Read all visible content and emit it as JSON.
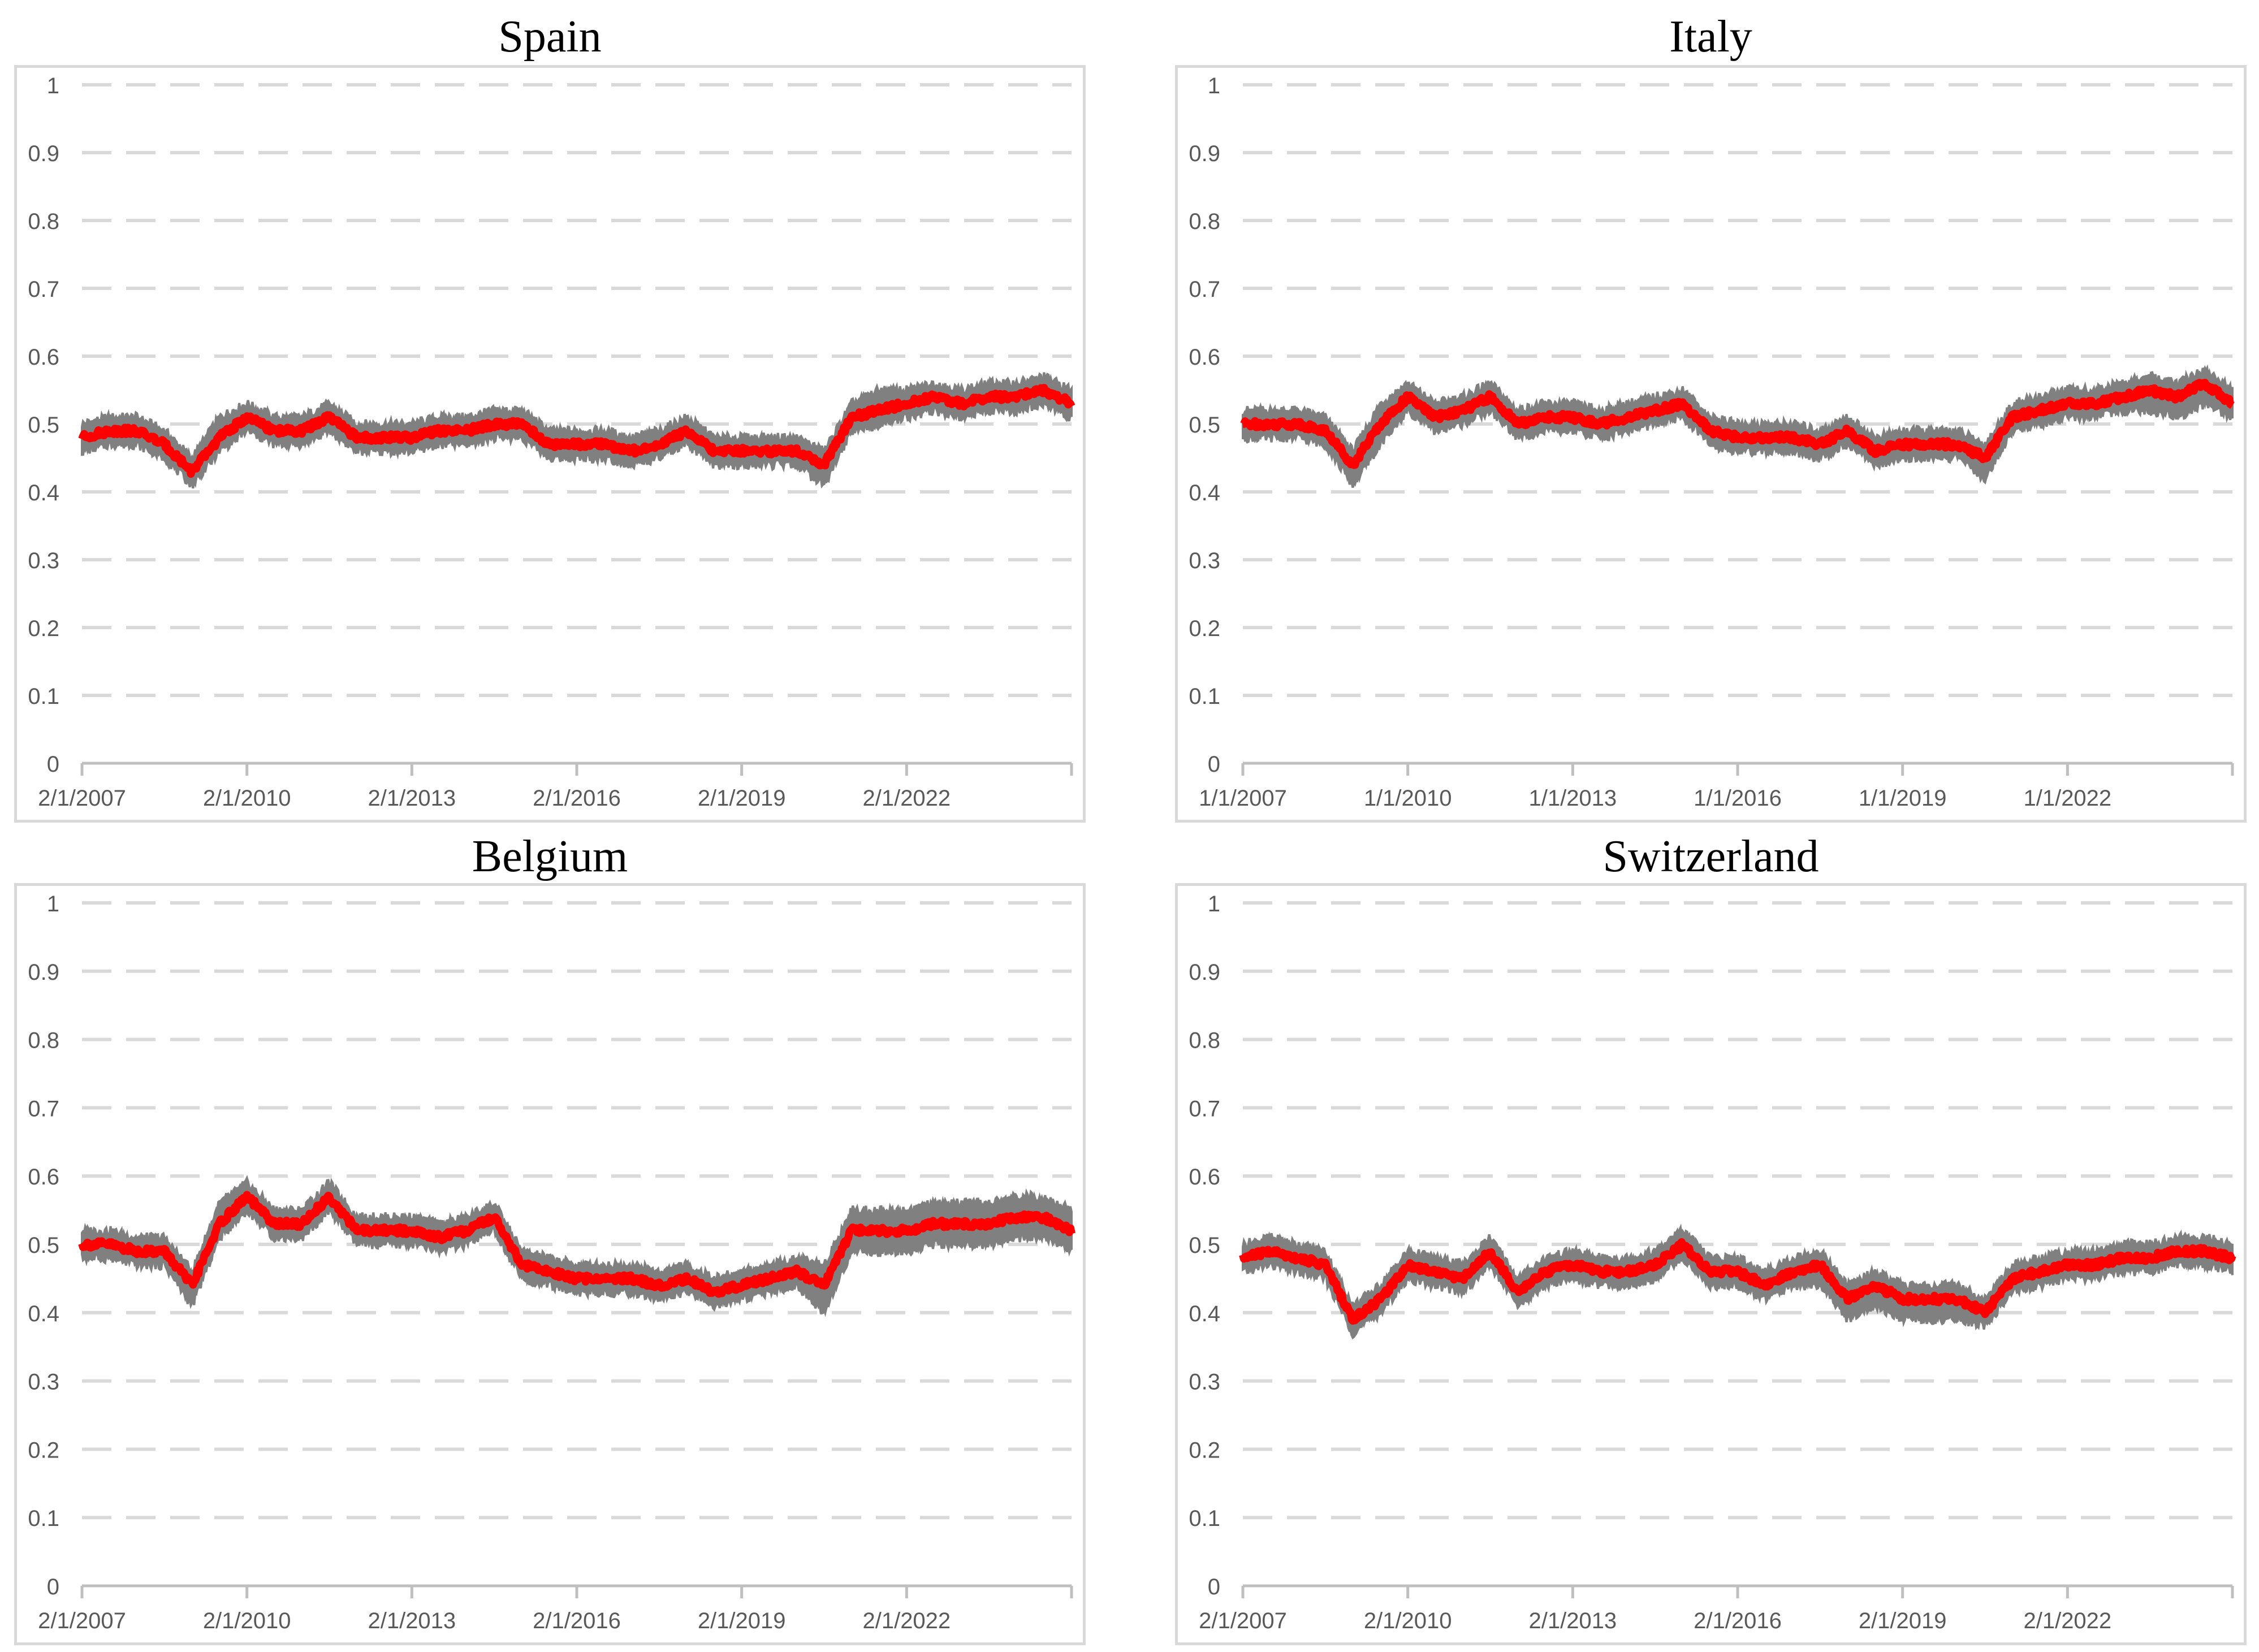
{
  "colors": {
    "band": "#808080",
    "center": "#ff0000",
    "grid": "#d9d9d9",
    "axis": "#bfbfbf",
    "tick_text": "#595959"
  },
  "chart_data": [
    {
      "type": "line",
      "title": "Spain",
      "ylim": [
        0,
        1
      ],
      "y_ticks": [
        "0",
        "0.1",
        "0.2",
        "0.3",
        "0.4",
        "0.5",
        "0.6",
        "0.7",
        "0.8",
        "0.9",
        "1"
      ],
      "x_tick_labels": [
        "2/1/2007",
        "2/1/2010",
        "2/1/2013",
        "2/1/2016",
        "2/1/2019",
        "2/1/2022"
      ],
      "xlim": [
        2007.0,
        2025.0
      ],
      "grid": "horizontal-dashed",
      "x": [
        2007.0,
        2007.5,
        2008.0,
        2008.5,
        2009.0,
        2009.5,
        2010.0,
        2010.5,
        2011.0,
        2011.5,
        2012.0,
        2012.5,
        2013.0,
        2013.5,
        2014.0,
        2014.5,
        2015.0,
        2015.5,
        2016.0,
        2016.5,
        2017.0,
        2017.5,
        2018.0,
        2018.5,
        2019.0,
        2019.5,
        2020.0,
        2020.5,
        2021.0,
        2021.5,
        2022.0,
        2022.5,
        2023.0,
        2023.5,
        2024.0,
        2024.5,
        2025.0
      ],
      "series": [
        {
          "role": "center",
          "values": [
            0.48,
            0.49,
            0.49,
            0.47,
            0.43,
            0.48,
            0.51,
            0.49,
            0.49,
            0.51,
            0.48,
            0.48,
            0.48,
            0.49,
            0.49,
            0.5,
            0.5,
            0.47,
            0.47,
            0.47,
            0.46,
            0.47,
            0.49,
            0.46,
            0.46,
            0.46,
            0.46,
            0.44,
            0.51,
            0.52,
            0.53,
            0.54,
            0.53,
            0.54,
            0.54,
            0.55,
            0.53
          ]
        },
        {
          "role": "band-upper",
          "values": [
            0.5,
            0.51,
            0.51,
            0.49,
            0.45,
            0.51,
            0.53,
            0.51,
            0.51,
            0.53,
            0.5,
            0.5,
            0.5,
            0.51,
            0.51,
            0.52,
            0.52,
            0.49,
            0.49,
            0.49,
            0.48,
            0.49,
            0.51,
            0.48,
            0.48,
            0.48,
            0.48,
            0.46,
            0.53,
            0.55,
            0.55,
            0.56,
            0.55,
            0.56,
            0.56,
            0.57,
            0.55
          ]
        },
        {
          "role": "band-lower",
          "values": [
            0.46,
            0.47,
            0.47,
            0.45,
            0.41,
            0.46,
            0.49,
            0.47,
            0.47,
            0.49,
            0.46,
            0.46,
            0.46,
            0.47,
            0.47,
            0.48,
            0.48,
            0.45,
            0.45,
            0.45,
            0.44,
            0.45,
            0.47,
            0.44,
            0.44,
            0.44,
            0.44,
            0.41,
            0.49,
            0.5,
            0.51,
            0.52,
            0.51,
            0.52,
            0.52,
            0.53,
            0.51
          ]
        }
      ]
    },
    {
      "type": "line",
      "title": "Italy",
      "ylim": [
        0,
        1
      ],
      "y_ticks": [
        "0",
        "0.1",
        "0.2",
        "0.3",
        "0.4",
        "0.5",
        "0.6",
        "0.7",
        "0.8",
        "0.9",
        "1"
      ],
      "x_tick_labels": [
        "1/1/2007",
        "1/1/2010",
        "1/1/2013",
        "1/1/2016",
        "1/1/2019",
        "1/1/2022"
      ],
      "xlim": [
        2007.0,
        2025.0
      ],
      "grid": "horizontal-dashed",
      "x": [
        2007.0,
        2007.5,
        2008.0,
        2008.5,
        2009.0,
        2009.5,
        2010.0,
        2010.5,
        2011.0,
        2011.5,
        2012.0,
        2012.5,
        2013.0,
        2013.5,
        2014.0,
        2014.5,
        2015.0,
        2015.5,
        2016.0,
        2016.5,
        2017.0,
        2017.5,
        2018.0,
        2018.5,
        2019.0,
        2019.5,
        2020.0,
        2020.5,
        2021.0,
        2021.5,
        2022.0,
        2022.5,
        2023.0,
        2023.5,
        2024.0,
        2024.5,
        2025.0
      ],
      "series": [
        {
          "role": "center",
          "values": [
            0.5,
            0.5,
            0.5,
            0.49,
            0.44,
            0.5,
            0.54,
            0.51,
            0.52,
            0.54,
            0.5,
            0.51,
            0.51,
            0.5,
            0.51,
            0.52,
            0.53,
            0.49,
            0.48,
            0.48,
            0.48,
            0.47,
            0.49,
            0.46,
            0.47,
            0.47,
            0.47,
            0.45,
            0.51,
            0.52,
            0.53,
            0.53,
            0.54,
            0.55,
            0.54,
            0.56,
            0.53
          ]
        },
        {
          "role": "band-upper",
          "values": [
            0.52,
            0.52,
            0.52,
            0.51,
            0.46,
            0.53,
            0.56,
            0.53,
            0.54,
            0.56,
            0.52,
            0.53,
            0.53,
            0.52,
            0.53,
            0.54,
            0.55,
            0.51,
            0.5,
            0.5,
            0.5,
            0.49,
            0.51,
            0.48,
            0.49,
            0.49,
            0.49,
            0.47,
            0.53,
            0.54,
            0.55,
            0.55,
            0.56,
            0.57,
            0.56,
            0.58,
            0.55
          ]
        },
        {
          "role": "band-lower",
          "values": [
            0.48,
            0.48,
            0.48,
            0.47,
            0.41,
            0.47,
            0.52,
            0.49,
            0.5,
            0.52,
            0.48,
            0.49,
            0.49,
            0.48,
            0.49,
            0.5,
            0.51,
            0.47,
            0.46,
            0.46,
            0.46,
            0.45,
            0.47,
            0.44,
            0.45,
            0.45,
            0.45,
            0.42,
            0.49,
            0.5,
            0.51,
            0.51,
            0.52,
            0.52,
            0.51,
            0.53,
            0.51
          ]
        }
      ]
    },
    {
      "type": "line",
      "title": "Belgium",
      "ylim": [
        0,
        1
      ],
      "y_ticks": [
        "0",
        "0.1",
        "0.2",
        "0.3",
        "0.4",
        "0.5",
        "0.6",
        "0.7",
        "0.8",
        "0.9",
        "1"
      ],
      "x_tick_labels": [
        "2/1/2007",
        "2/1/2010",
        "2/1/2013",
        "2/1/2016",
        "2/1/2019",
        "2/1/2022"
      ],
      "xlim": [
        2007.0,
        2025.0
      ],
      "grid": "horizontal-dashed",
      "x": [
        2007.0,
        2007.5,
        2008.0,
        2008.5,
        2009.0,
        2009.5,
        2010.0,
        2010.5,
        2011.0,
        2011.5,
        2012.0,
        2012.5,
        2013.0,
        2013.5,
        2014.0,
        2014.5,
        2015.0,
        2015.5,
        2016.0,
        2016.5,
        2017.0,
        2017.5,
        2018.0,
        2018.5,
        2019.0,
        2019.5,
        2020.0,
        2020.5,
        2021.0,
        2021.5,
        2022.0,
        2022.5,
        2023.0,
        2023.5,
        2024.0,
        2024.5,
        2025.0
      ],
      "series": [
        {
          "role": "center",
          "values": [
            0.5,
            0.5,
            0.49,
            0.49,
            0.44,
            0.53,
            0.57,
            0.53,
            0.53,
            0.57,
            0.52,
            0.52,
            0.52,
            0.51,
            0.52,
            0.54,
            0.47,
            0.46,
            0.45,
            0.45,
            0.45,
            0.44,
            0.45,
            0.43,
            0.44,
            0.45,
            0.46,
            0.44,
            0.52,
            0.52,
            0.52,
            0.53,
            0.53,
            0.53,
            0.54,
            0.54,
            0.52
          ]
        },
        {
          "role": "band-upper",
          "values": [
            0.52,
            0.52,
            0.51,
            0.51,
            0.46,
            0.56,
            0.59,
            0.55,
            0.55,
            0.59,
            0.54,
            0.54,
            0.54,
            0.53,
            0.54,
            0.56,
            0.49,
            0.48,
            0.47,
            0.47,
            0.47,
            0.46,
            0.47,
            0.45,
            0.46,
            0.47,
            0.48,
            0.47,
            0.55,
            0.55,
            0.55,
            0.56,
            0.56,
            0.56,
            0.57,
            0.57,
            0.55
          ]
        },
        {
          "role": "band-lower",
          "values": [
            0.48,
            0.48,
            0.47,
            0.47,
            0.41,
            0.51,
            0.55,
            0.51,
            0.51,
            0.55,
            0.5,
            0.5,
            0.5,
            0.49,
            0.5,
            0.52,
            0.45,
            0.44,
            0.43,
            0.43,
            0.43,
            0.42,
            0.43,
            0.41,
            0.42,
            0.43,
            0.44,
            0.4,
            0.49,
            0.49,
            0.49,
            0.5,
            0.5,
            0.5,
            0.51,
            0.51,
            0.49
          ]
        }
      ]
    },
    {
      "type": "line",
      "title": "Switzerland",
      "ylim": [
        0,
        1
      ],
      "y_ticks": [
        "0",
        "0.1",
        "0.2",
        "0.3",
        "0.4",
        "0.5",
        "0.6",
        "0.7",
        "0.8",
        "0.9",
        "1"
      ],
      "x_tick_labels": [
        "2/1/2007",
        "2/1/2010",
        "2/1/2013",
        "2/1/2016",
        "2/1/2019",
        "2/1/2022"
      ],
      "xlim": [
        2007.0,
        2025.0
      ],
      "grid": "horizontal-dashed",
      "x": [
        2007.0,
        2007.5,
        2008.0,
        2008.5,
        2009.0,
        2009.5,
        2010.0,
        2010.5,
        2011.0,
        2011.5,
        2012.0,
        2012.5,
        2013.0,
        2013.5,
        2014.0,
        2014.5,
        2015.0,
        2015.5,
        2016.0,
        2016.5,
        2017.0,
        2017.5,
        2018.0,
        2018.5,
        2019.0,
        2019.5,
        2020.0,
        2020.5,
        2021.0,
        2021.5,
        2022.0,
        2022.5,
        2023.0,
        2023.5,
        2024.0,
        2024.5,
        2025.0
      ],
      "series": [
        {
          "role": "center",
          "values": [
            0.48,
            0.49,
            0.48,
            0.47,
            0.39,
            0.42,
            0.47,
            0.46,
            0.45,
            0.49,
            0.43,
            0.46,
            0.47,
            0.46,
            0.46,
            0.47,
            0.5,
            0.46,
            0.46,
            0.44,
            0.46,
            0.47,
            0.42,
            0.44,
            0.42,
            0.42,
            0.42,
            0.4,
            0.45,
            0.46,
            0.47,
            0.47,
            0.48,
            0.48,
            0.49,
            0.49,
            0.48
          ]
        },
        {
          "role": "band-upper",
          "values": [
            0.5,
            0.51,
            0.5,
            0.49,
            0.41,
            0.44,
            0.49,
            0.48,
            0.47,
            0.51,
            0.45,
            0.48,
            0.49,
            0.48,
            0.48,
            0.49,
            0.52,
            0.48,
            0.48,
            0.46,
            0.48,
            0.49,
            0.44,
            0.46,
            0.44,
            0.44,
            0.44,
            0.42,
            0.47,
            0.48,
            0.49,
            0.49,
            0.5,
            0.5,
            0.51,
            0.51,
            0.5
          ]
        },
        {
          "role": "band-lower",
          "values": [
            0.46,
            0.47,
            0.46,
            0.45,
            0.37,
            0.4,
            0.45,
            0.44,
            0.43,
            0.47,
            0.41,
            0.44,
            0.45,
            0.44,
            0.44,
            0.45,
            0.48,
            0.44,
            0.44,
            0.42,
            0.44,
            0.44,
            0.39,
            0.41,
            0.39,
            0.39,
            0.39,
            0.38,
            0.43,
            0.44,
            0.45,
            0.45,
            0.46,
            0.46,
            0.47,
            0.47,
            0.46
          ]
        }
      ]
    }
  ]
}
